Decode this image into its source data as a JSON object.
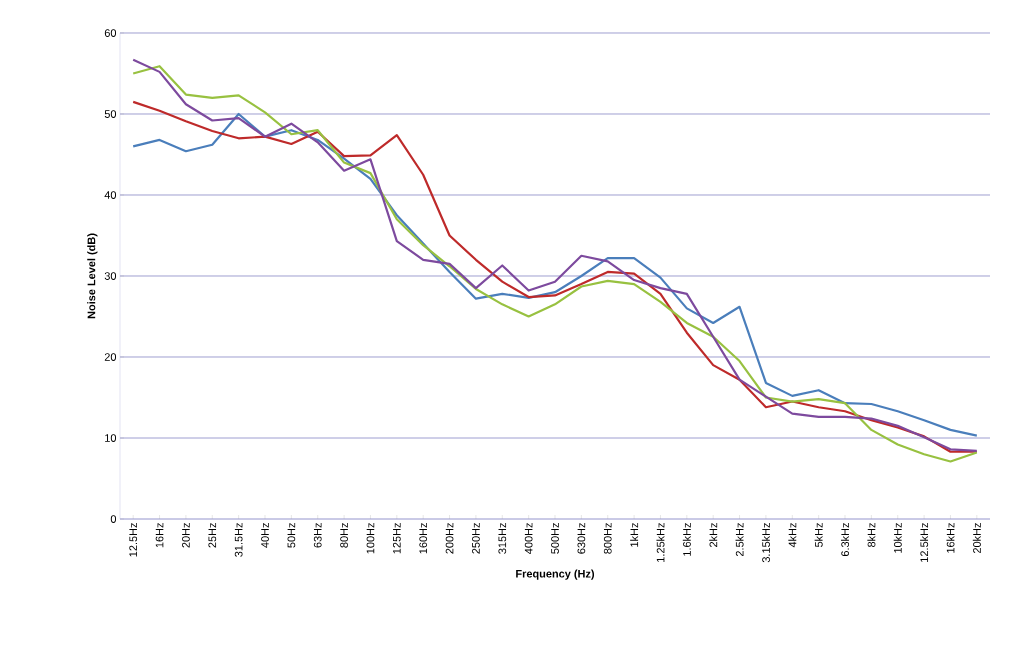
{
  "chart_data": {
    "type": "line",
    "xlabel": "Frequency (Hz)",
    "ylabel": "Noise Level (dB)",
    "categories": [
      "12.5Hz",
      "16Hz",
      "20Hz",
      "25Hz",
      "31.5Hz",
      "40Hz",
      "50Hz",
      "63Hz",
      "80Hz",
      "100Hz",
      "125Hz",
      "160Hz",
      "200Hz",
      "250Hz",
      "315Hz",
      "400Hz",
      "500Hz",
      "630Hz",
      "800Hz",
      "1kHz",
      "1.25kHz",
      "1.6kHz",
      "2kHz",
      "2.5kHz",
      "3.15kHz",
      "4kHz",
      "5kHz",
      "6.3kHz",
      "8kHz",
      "10kHz",
      "12.5kHz",
      "16kHz",
      "20kHz"
    ],
    "series": [
      {
        "color": "#4a7ebb",
        "values": [
          46,
          46.8,
          45.4,
          46.2,
          50,
          47.2,
          48,
          46.8,
          44.5,
          42,
          37.5,
          34,
          30.5,
          27.2,
          27.8,
          27.3,
          28,
          30,
          32.2,
          32.2,
          29.8,
          26,
          24.2,
          26.2,
          16.8,
          15.2,
          15.9,
          14.3,
          14.2,
          13.3,
          12.2,
          11,
          10.3
        ]
      },
      {
        "color": "#be2a2a",
        "values": [
          51.5,
          50.4,
          49.1,
          47.9,
          47,
          47.2,
          46.3,
          47.8,
          44.8,
          44.9,
          47.4,
          42.5,
          35,
          32,
          29.3,
          27.4,
          27.6,
          29,
          30.5,
          30.3,
          27.8,
          23,
          19,
          17.2,
          13.8,
          14.5,
          13.8,
          13.3,
          12.2,
          11.3,
          10.2,
          8.3,
          8.3
        ]
      },
      {
        "color": "#98c140",
        "values": [
          55,
          55.9,
          52.4,
          52,
          52.3,
          50.2,
          47.5,
          48,
          44,
          42.7,
          37,
          33.8,
          31.2,
          28.4,
          26.5,
          25,
          26.5,
          28.7,
          29.4,
          29,
          26.8,
          24.2,
          22.5,
          19.5,
          15,
          14.5,
          14.8,
          14.3,
          11,
          9.2,
          8,
          7.1,
          8.2
        ]
      },
      {
        "color": "#7d4a9e",
        "values": [
          56.7,
          55.2,
          51.2,
          49.2,
          49.5,
          47.2,
          48.8,
          46.5,
          43,
          44.4,
          34.3,
          32,
          31.5,
          28.5,
          31.3,
          28.2,
          29.3,
          32.5,
          31.8,
          29.5,
          28.5,
          27.8,
          22.5,
          17.2,
          15.1,
          13,
          12.6,
          12.6,
          12.4,
          11.5,
          10.1,
          8.6,
          8.4
        ]
      }
    ],
    "ylim": [
      0,
      60
    ],
    "yticks": [
      0,
      10,
      20,
      30,
      40,
      50,
      60
    ],
    "grid": "y",
    "legend": false,
    "marker": "none",
    "line_style": "solid"
  }
}
